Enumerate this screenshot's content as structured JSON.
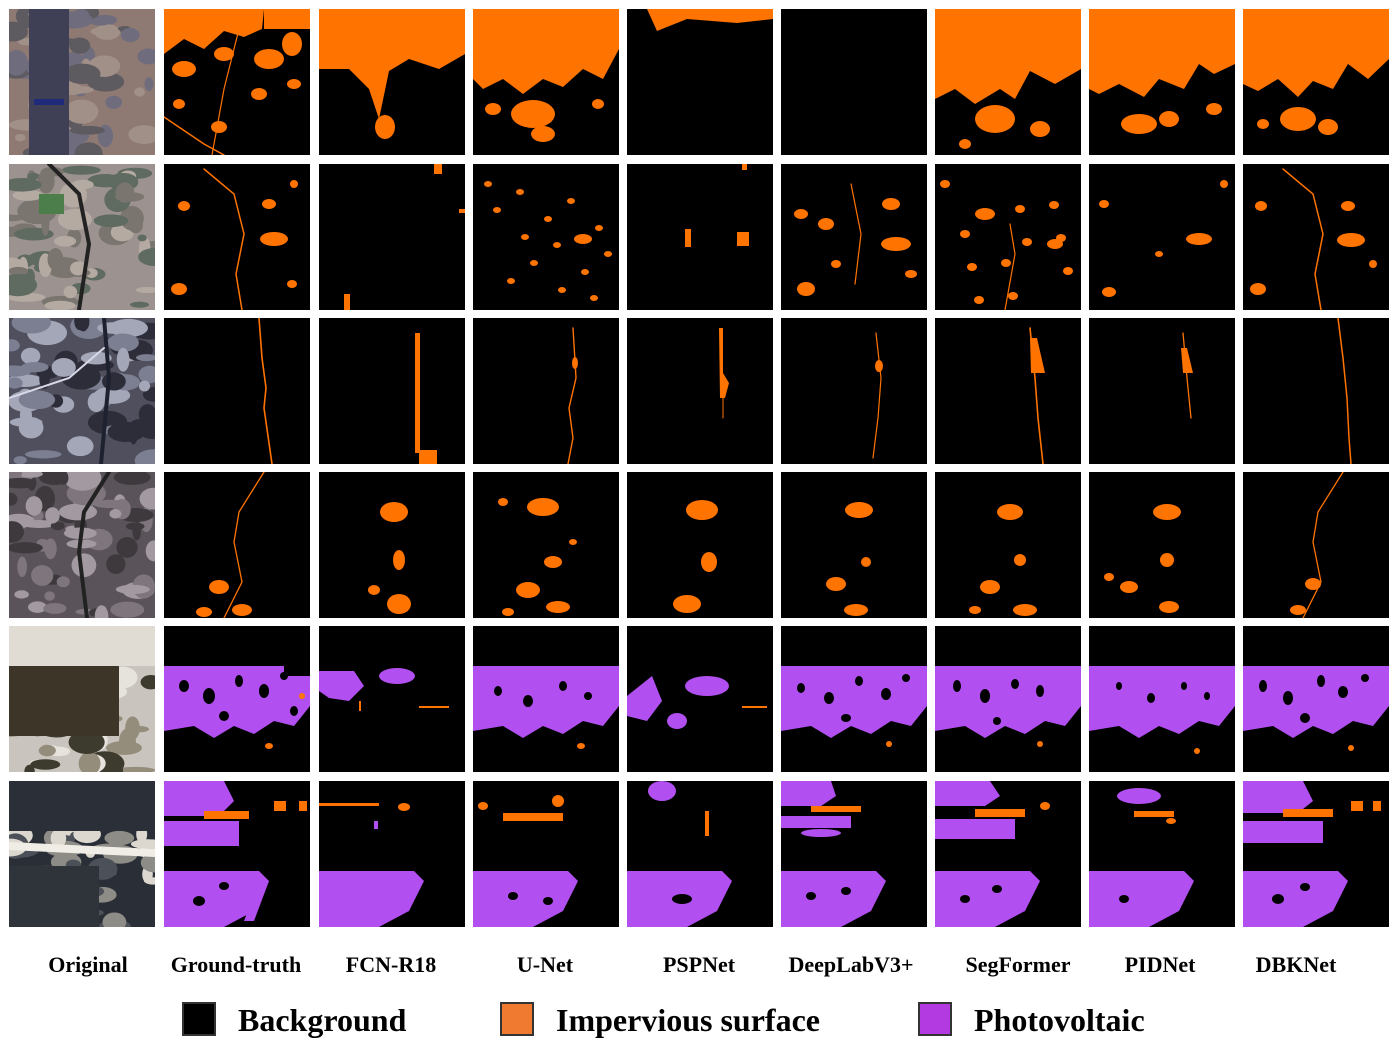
{
  "figure": {
    "columns": [
      "Original",
      "Ground-truth",
      "FCN-R18",
      "U-Net",
      "PSPNet",
      "DeepLabV3+",
      "SegFormer",
      "PIDNet",
      "DBKNet"
    ],
    "rows": 6
  },
  "legend": {
    "items": [
      {
        "label": "Background",
        "color": "#000000"
      },
      {
        "label": "Impervious surface",
        "color": "#f07a30"
      },
      {
        "label": "Photovoltaic",
        "color": "#b23ae0"
      }
    ]
  },
  "colors": {
    "impervious": "#ff7300",
    "photovoltaic": "#b24ff0",
    "background": "#000000"
  }
}
